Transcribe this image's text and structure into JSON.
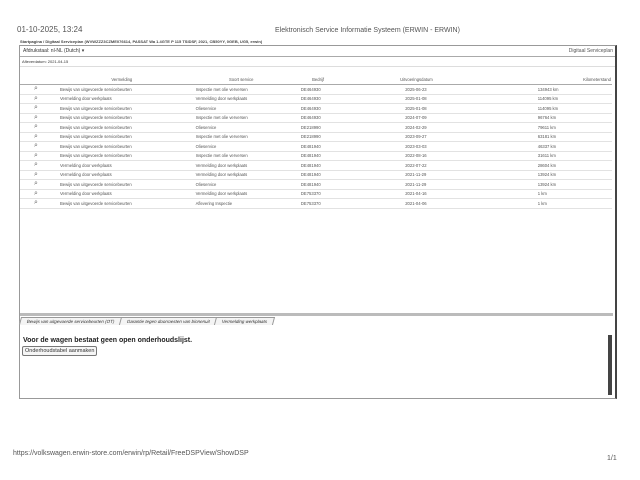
{
  "header": {
    "datetime": "01-10-2025, 13:24",
    "title": "Elektronisch Service Informatie Systeem (ERWIN - ERWIN)",
    "breadcrumb": "Startpagina / Digitaal Serviceplan (WVWZZZ3CZME076614, PASSAT Wa 1.4GTE P 115 TSIDSF, 2021, CB50YY, 0GEB, UG5, erwin)"
  },
  "toolbar": {
    "lang_label": "Afdrukstaal:",
    "lang_value": "nl-NL (Dutch)",
    "section": "Digitaal Serviceplan",
    "delivery": "Afleverdatum: 2021-04-15"
  },
  "table": {
    "columns": [
      "Vermelding",
      "Soort service",
      "Bedrijf",
      "Uitvoeringsdatum",
      "Kilometerstand"
    ],
    "rows": [
      [
        "Bewijs van uitgevoerde servicebeurten",
        "Inspectie met olie verversen",
        "DE464930",
        "2025-06-23",
        "134943 km"
      ],
      [
        "Vermelding door werkplaats",
        "Vermelding door werkplaats",
        "DE464930",
        "2025-01-08",
        "114095 km"
      ],
      [
        "Bewijs van uitgevoerde servicebeurten",
        "Olieservice",
        "DE464930",
        "2025-01-08",
        "114095 km"
      ],
      [
        "Bewijs van uitgevoerde servicebeurten",
        "Inspectie met olie verversen",
        "DE464930",
        "2024-07-09",
        "96764 km"
      ],
      [
        "Bewijs van uitgevoerde servicebeurten",
        "Olieservice",
        "DE218990",
        "2024-02-29",
        "79611 km"
      ],
      [
        "Bewijs van uitgevoerde servicebeurten",
        "Inspectie met olie verversen",
        "DE218990",
        "2023-09-27",
        "63181 km"
      ],
      [
        "Bewijs van uitgevoerde servicebeurten",
        "Olieservice",
        "DE481940",
        "2023-03-03",
        "46337 km"
      ],
      [
        "Bewijs van uitgevoerde servicebeurten",
        "Inspectie met olie verversen",
        "DE481940",
        "2022-08-16",
        "31611 km"
      ],
      [
        "Vermelding door werkplaats",
        "Vermelding door werkplaats",
        "DE481940",
        "2022-07-22",
        "28604 km"
      ],
      [
        "Vermelding door werkplaats",
        "Vermelding door werkplaats",
        "DE481940",
        "2021-11-29",
        "13924 km"
      ],
      [
        "Bewijs van uitgevoerde servicebeurten",
        "Olieservice",
        "DE481940",
        "2021-11-29",
        "13924 km"
      ],
      [
        "Vermelding door werkplaats",
        "Vermelding door werkplaats",
        "DE753370",
        "2021-04-16",
        "1 km"
      ],
      [
        "Bewijs van uitgevoerde servicebeurten",
        "Aflevering Inspectie",
        "DE753370",
        "2021-04-06",
        "1 km"
      ]
    ]
  },
  "tabs": [
    "Bewijs van uitgevoerde servicebeurten (OT)",
    "Garantie tegen doorroesten van binnenuit",
    "Vermelding werkplaats"
  ],
  "message": "Voor de wagen bestaat geen open onderhoudslijst.",
  "create_button": "Onderhoudstabel aanmaken",
  "footer": {
    "url": "https://volkswagen.erwin-store.com/erwin/rp/Retail/FreeDSPView/ShowDSP",
    "page": "1/1"
  }
}
